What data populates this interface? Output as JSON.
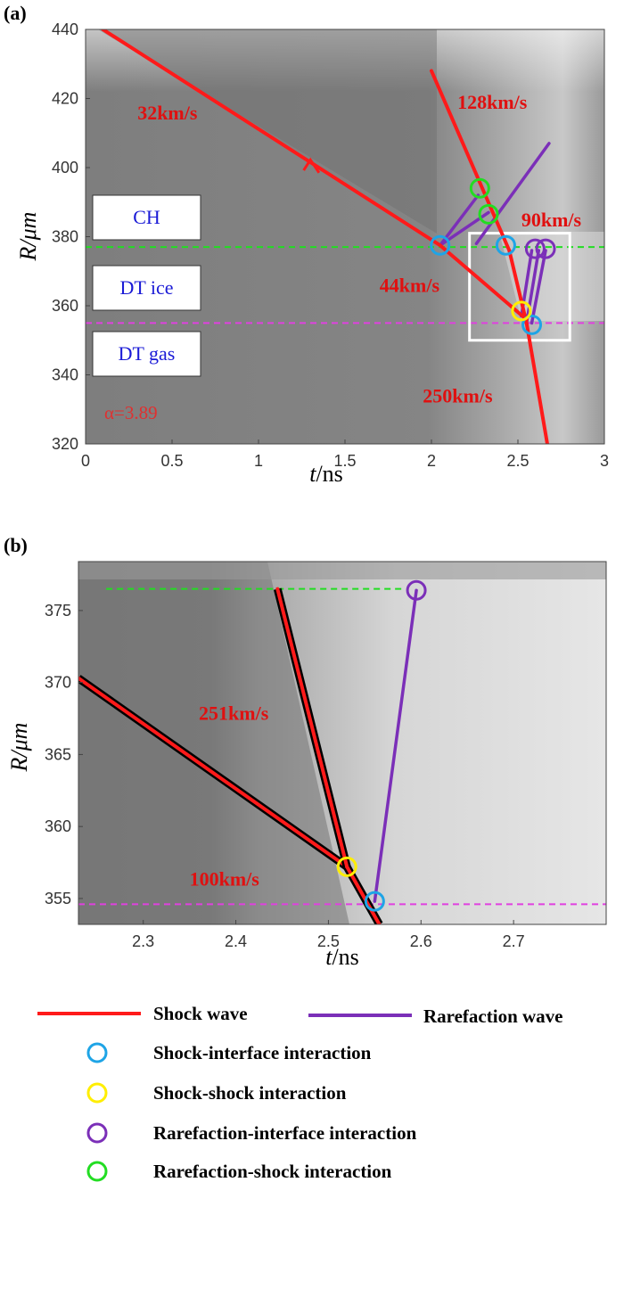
{
  "colors": {
    "shock": "#ff1a1a",
    "rarefaction": "#7b2fb8",
    "shock_interface": "#1ea4e6",
    "shock_shock": "#ffee00",
    "rarefaction_interface": "#7b2fb8",
    "rarefaction_shock": "#22dd22",
    "ch_dt_interface_line": "#22dd22",
    "dt_ice_gas_interface_line": "#e040e0",
    "zoom_box": "#ffffff"
  },
  "chart_data": [
    {
      "panel": "(a)",
      "type": "line",
      "xlabel_italic": "t",
      "xlabel_rest": "/ns",
      "ylabel_italic": "R/μm",
      "xlim": [
        0,
        3
      ],
      "ylim": [
        320,
        440
      ],
      "xticks": [
        "0",
        "0.5",
        "1",
        "1.5",
        "2",
        "2.5",
        "3"
      ],
      "yticks": [
        "320",
        "340",
        "360",
        "380",
        "400",
        "420",
        "440"
      ],
      "grid": false,
      "background": "grayscale density field",
      "interfaces": [
        {
          "name": "CH / DT ice",
          "y": 377,
          "color_key": "ch_dt_interface_line"
        },
        {
          "name": "DT ice / DT gas",
          "y": 355,
          "color_key": "dt_ice_gas_interface_line"
        }
      ],
      "shock_lines": [
        {
          "x": [
            0.1,
            2.05
          ],
          "y": [
            440,
            377.5
          ]
        },
        {
          "x": [
            2.05,
            2.55
          ],
          "y": [
            377.5,
            356
          ]
        },
        {
          "x": [
            2.0,
            2.45
          ],
          "y": [
            428,
            376
          ]
        },
        {
          "x": [
            2.45,
            2.55
          ],
          "y": [
            376,
            355
          ]
        },
        {
          "x": [
            2.55,
            2.67
          ],
          "y": [
            355,
            320
          ]
        }
      ],
      "rarefaction_lines": [
        {
          "x": [
            2.05,
            2.27
          ],
          "y": [
            377.5,
            392
          ]
        },
        {
          "x": [
            2.05,
            2.33
          ],
          "y": [
            377.5,
            387
          ]
        },
        {
          "x": [
            2.26,
            2.68
          ],
          "y": [
            378,
            407
          ]
        },
        {
          "x": [
            2.52,
            2.58
          ],
          "y": [
            357,
            376
          ]
        },
        {
          "x": [
            2.55,
            2.62
          ],
          "y": [
            355,
            376
          ]
        },
        {
          "x": [
            2.58,
            2.66
          ],
          "y": [
            355,
            376
          ]
        }
      ],
      "arrow": {
        "x": 1.35,
        "y": 398.5
      },
      "velocity_labels": [
        {
          "text": "32km/s",
          "x": 0.3,
          "y": 414
        },
        {
          "text": "128km/s",
          "x": 2.15,
          "y": 417
        },
        {
          "text": "90km/s",
          "x": 2.52,
          "y": 383
        },
        {
          "text": "44km/s",
          "x": 1.7,
          "y": 364
        },
        {
          "text": "250km/s",
          "x": 1.95,
          "y": 332
        }
      ],
      "markers": [
        {
          "type": "shock_interface",
          "x": 2.05,
          "y": 377.5
        },
        {
          "type": "shock_interface",
          "x": 2.43,
          "y": 377.5
        },
        {
          "type": "shock_interface",
          "x": 2.58,
          "y": 354.5
        },
        {
          "type": "shock_shock",
          "x": 2.52,
          "y": 358.5
        },
        {
          "type": "rarefaction_shock",
          "x": 2.28,
          "y": 394
        },
        {
          "type": "rarefaction_shock",
          "x": 2.33,
          "y": 386.5
        },
        {
          "type": "rarefaction_interface",
          "x": 2.6,
          "y": 376.5
        },
        {
          "type": "rarefaction_interface",
          "x": 2.66,
          "y": 376.5
        }
      ],
      "zoom_box": {
        "x": [
          2.22,
          2.8
        ],
        "y": [
          350,
          381
        ]
      },
      "region_labels": [
        "CH",
        "DT ice",
        "DT gas"
      ],
      "annotation": "α=3.89"
    },
    {
      "panel": "(b)",
      "type": "line",
      "xlabel_italic": "t",
      "xlabel_rest": "/ns",
      "ylabel_italic": "R/μm",
      "xlim": [
        2.23,
        2.8
      ],
      "ylim": [
        353.2,
        378.4
      ],
      "xticks": [
        "2.3",
        "2.4",
        "2.5",
        "2.6",
        "2.7"
      ],
      "xtick_values": [
        2.3,
        2.4,
        2.5,
        2.6,
        2.7
      ],
      "yticks": [
        "355",
        "360",
        "365",
        "370",
        "375"
      ],
      "ytick_values": [
        355,
        360,
        365,
        370,
        375
      ],
      "grid": false,
      "background": "grayscale density field",
      "interfaces": [
        {
          "name": "CH / DT ice",
          "y": 376.5,
          "x": [
            2.26,
            2.58
          ],
          "color_key": "ch_dt_interface_line"
        },
        {
          "name": "DT ice / DT gas",
          "y": 354.6,
          "x": [
            2.23,
            2.8
          ],
          "color_key": "dt_ice_gas_interface_line"
        }
      ],
      "shock_lines": [
        {
          "x": [
            2.23,
            2.52
          ],
          "y": [
            370.3,
            357.2
          ]
        },
        {
          "x": [
            2.445,
            2.52
          ],
          "y": [
            376.5,
            357.2
          ]
        },
        {
          "x": [
            2.52,
            2.555
          ],
          "y": [
            357.2,
            353.2
          ]
        }
      ],
      "rarefaction_lines": [
        {
          "x": [
            2.55,
            2.595
          ],
          "y": [
            354.8,
            376.4
          ]
        }
      ],
      "velocity_labels": [
        {
          "text": "251km/s",
          "x": 2.36,
          "y": 367.4
        },
        {
          "text": "100km/s",
          "x": 2.35,
          "y": 355.9
        }
      ],
      "markers": [
        {
          "type": "shock_shock",
          "x": 2.52,
          "y": 357.2
        },
        {
          "type": "shock_interface",
          "x": 2.55,
          "y": 354.8
        },
        {
          "type": "rarefaction_interface",
          "x": 2.595,
          "y": 376.4
        }
      ]
    }
  ],
  "legend": [
    {
      "kind": "line",
      "color_key": "shock",
      "label": "Shock wave"
    },
    {
      "kind": "line",
      "color_key": "rarefaction",
      "label": "Rarefaction wave"
    },
    {
      "kind": "circle",
      "color_key": "shock_interface",
      "label": "Shock-interface interaction"
    },
    {
      "kind": "circle",
      "color_key": "shock_shock",
      "label": "Shock-shock interaction"
    },
    {
      "kind": "circle",
      "color_key": "rarefaction_interface",
      "label": "Rarefaction-interface interaction"
    },
    {
      "kind": "circle",
      "color_key": "rarefaction_shock",
      "label": "Rarefaction-shock interaction"
    }
  ]
}
